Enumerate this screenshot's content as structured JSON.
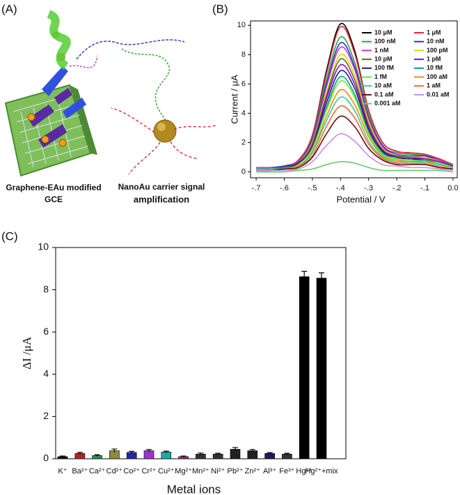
{
  "diagram": {
    "panel_label": "(A)",
    "captions": [
      [
        "Graphene-EAu modified",
        "GCE"
      ],
      [
        "NanoAu carrier signal",
        "amplification"
      ]
    ]
  },
  "chart_data": [
    {
      "type": "line",
      "panel_label": "(B)",
      "x_label": "Potential / V",
      "y_label": "Current / μA",
      "x": [
        -0.7,
        -0.65,
        -0.6,
        -0.55,
        -0.5,
        -0.45,
        -0.4,
        -0.35,
        -0.3,
        -0.25,
        -0.2,
        -0.15,
        -0.1,
        -0.05,
        0.0
      ],
      "xlim": [
        -0.72,
        0.015
      ],
      "ylim": [
        -0.4,
        10.3
      ],
      "xticks": [
        {
          "value": -0.7,
          "label": "-.7"
        },
        {
          "value": -0.6,
          "label": "-.6"
        },
        {
          "value": -0.5,
          "label": "-.5"
        },
        {
          "value": -0.4,
          "label": "-.4"
        },
        {
          "value": -0.3,
          "label": "-.3"
        },
        {
          "value": -0.2,
          "label": "-.2"
        },
        {
          "value": -0.1,
          "label": "-.1"
        },
        {
          "value": 0,
          "label": "0.0"
        }
      ],
      "yticks": [
        0,
        2,
        4,
        6,
        8,
        10
      ],
      "series": [
        {
          "name": "10 μM",
          "color": "#000000",
          "values": [
            0.3,
            0.3,
            0.4,
            0.8,
            2.5,
            6.9,
            10.1,
            8.3,
            4.2,
            2.0,
            1.4,
            1.3,
            1.2,
            0.9,
            0.5
          ]
        },
        {
          "name": "1 μM",
          "color": "#e8203a",
          "values": [
            0.3,
            0.3,
            0.4,
            0.8,
            2.5,
            6.7,
            9.9,
            8.1,
            4.2,
            2.0,
            1.4,
            1.3,
            1.2,
            0.9,
            0.5
          ]
        },
        {
          "name": "100 nM",
          "color": "#22a838",
          "values": [
            0.3,
            0.3,
            0.4,
            0.7,
            2.3,
            6.3,
            9.2,
            7.5,
            3.9,
            1.8,
            1.3,
            1.2,
            1.1,
            0.8,
            0.5
          ]
        },
        {
          "name": "10 nM",
          "color": "#2432c8",
          "values": [
            0.3,
            0.3,
            0.4,
            0.7,
            2.2,
            6.0,
            8.8,
            7.2,
            3.7,
            1.8,
            1.2,
            1.1,
            1.1,
            0.8,
            0.4
          ]
        },
        {
          "name": "1 nM",
          "color": "#cc33cc",
          "values": [
            0.3,
            0.3,
            0.3,
            0.7,
            2.1,
            5.8,
            8.5,
            7.0,
            3.6,
            1.7,
            1.2,
            1.1,
            1.0,
            0.8,
            0.4
          ]
        },
        {
          "name": "100 pM",
          "color": "#d8d800",
          "values": [
            0.2,
            0.2,
            0.3,
            0.6,
            2.0,
            5.4,
            8.0,
            6.6,
            3.4,
            1.6,
            1.1,
            1.0,
            1.0,
            0.7,
            0.4
          ]
        },
        {
          "name": "10 pM",
          "color": "#556b2f",
          "values": [
            0.2,
            0.2,
            0.3,
            0.6,
            1.9,
            5.2,
            7.7,
            6.3,
            3.2,
            1.5,
            1.1,
            1.0,
            0.9,
            0.7,
            0.4
          ]
        },
        {
          "name": "1 pM",
          "color": "#9900cc",
          "values": [
            0.2,
            0.2,
            0.3,
            0.6,
            1.8,
            5.0,
            7.3,
            6.0,
            3.1,
            1.5,
            1.0,
            0.9,
            0.9,
            0.7,
            0.4
          ]
        },
        {
          "name": "100 fM",
          "color": "#1a1a80",
          "values": [
            0.2,
            0.2,
            0.3,
            0.6,
            1.7,
            4.7,
            6.9,
            5.7,
            2.9,
            1.4,
            1.0,
            0.9,
            0.8,
            0.6,
            0.3
          ]
        },
        {
          "name": "10 fM",
          "color": "#0e9a7a",
          "values": [
            0.2,
            0.2,
            0.3,
            0.5,
            1.6,
            4.4,
            6.5,
            5.3,
            2.7,
            1.3,
            0.9,
            0.8,
            0.8,
            0.6,
            0.3
          ]
        },
        {
          "name": "1 fM",
          "color": "#66ee33",
          "values": [
            0.2,
            0.2,
            0.2,
            0.5,
            1.6,
            4.2,
            6.2,
            5.1,
            2.6,
            1.2,
            0.9,
            0.8,
            0.7,
            0.6,
            0.3
          ]
        },
        {
          "name": "100 aM",
          "color": "#ff8800",
          "values": [
            0.2,
            0.2,
            0.2,
            0.4,
            1.4,
            3.8,
            5.6,
            4.6,
            2.4,
            1.1,
            0.8,
            0.7,
            0.7,
            0.5,
            0.3
          ]
        },
        {
          "name": "10 aM",
          "color": "#33cc99",
          "values": [
            0.2,
            0.2,
            0.2,
            0.4,
            1.3,
            3.5,
            5.1,
            4.2,
            2.1,
            1.0,
            0.7,
            0.7,
            0.6,
            0.5,
            0.3
          ]
        },
        {
          "name": "1 aM",
          "color": "#ff6633",
          "values": [
            0.1,
            0.1,
            0.2,
            0.4,
            1.1,
            3.1,
            4.5,
            3.7,
            1.9,
            0.9,
            0.6,
            0.6,
            0.5,
            0.4,
            0.2
          ]
        },
        {
          "name": "0.1 aM",
          "color": "#6a0d0d",
          "values": [
            0.1,
            0.1,
            0.2,
            0.3,
            1.0,
            2.6,
            3.8,
            3.1,
            1.6,
            0.8,
            0.5,
            0.5,
            0.5,
            0.3,
            0.2
          ]
        },
        {
          "name": "0.01 aM",
          "color": "#c78cf0",
          "values": [
            0.1,
            0.1,
            0.1,
            0.2,
            0.7,
            1.8,
            2.6,
            2.1,
            1.1,
            0.5,
            0.4,
            0.3,
            0.3,
            0.2,
            0.1
          ]
        },
        {
          "name": "0.001 aM",
          "color": "#66cc66",
          "values": [
            0.0,
            0.0,
            0.0,
            0.1,
            0.2,
            0.5,
            0.7,
            0.6,
            0.3,
            0.1,
            0.1,
            0.1,
            0.1,
            0.1,
            0.0
          ]
        }
      ]
    },
    {
      "type": "bar",
      "panel_label": "(C)",
      "x_label": "Metal ions",
      "y_label": "ΔI /μA",
      "categories": [
        "K⁺",
        "Ba²⁺",
        "Ca²⁺",
        "Cd²⁺",
        "Co²⁺",
        "Cr²⁺",
        "Cu²⁺",
        "Mg²⁺",
        "Mn²⁺",
        "Ni²⁺",
        "Pb²⁺",
        "Zn²⁺",
        "Al³⁺",
        "Fe³⁺",
        "Hg²⁺",
        "Hg²⁺+mix"
      ],
      "values": [
        0.1,
        0.25,
        0.15,
        0.38,
        0.3,
        0.38,
        0.32,
        0.1,
        0.22,
        0.22,
        0.45,
        0.38,
        0.25,
        0.22,
        8.62,
        8.55
      ],
      "errors": [
        0.03,
        0.05,
        0.04,
        0.08,
        0.05,
        0.06,
        0.04,
        0.03,
        0.05,
        0.04,
        0.08,
        0.06,
        0.04,
        0.04,
        0.25,
        0.25
      ],
      "colors": [
        "#111111",
        "#b22222",
        "#2e8b57",
        "#8b8b3a",
        "#2626aa",
        "#9933cc",
        "#20a8a0",
        "#8a3a6a",
        "#333333",
        "#333333",
        "#222222",
        "#222222",
        "#1a1a66",
        "#333333",
        "#000000",
        "#000000"
      ],
      "ylim": [
        0,
        10
      ],
      "yticks": [
        0,
        2,
        4,
        6,
        8,
        10
      ]
    }
  ]
}
